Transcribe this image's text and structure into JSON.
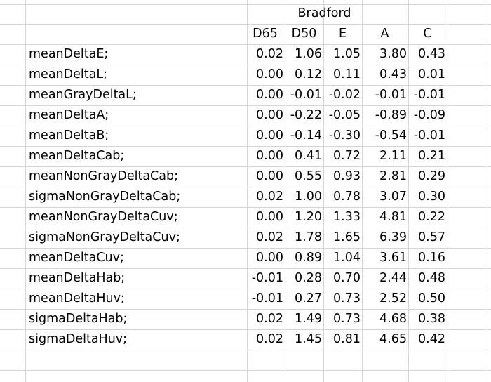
{
  "group_header": "Bradford",
  "columns": [
    "D65",
    "D50",
    "E",
    "A",
    "C"
  ],
  "rows": [
    {
      "label": "meanDeltaE;",
      "values": [
        "0.02",
        "1.06",
        "1.05",
        "3.80",
        "0.43"
      ]
    },
    {
      "label": "meanDeltaL;",
      "values": [
        "0.00",
        "0.12",
        "0.11",
        "0.43",
        "0.01"
      ]
    },
    {
      "label": "meanGrayDeltaL;",
      "values": [
        "0.00",
        "-0.01",
        "-0.02",
        "-0.01",
        "-0.01"
      ]
    },
    {
      "label": "meanDeltaA;",
      "values": [
        "0.00",
        "-0.22",
        "-0.05",
        "-0.89",
        "-0.09"
      ]
    },
    {
      "label": "meanDeltaB;",
      "values": [
        "0.00",
        "-0.14",
        "-0.30",
        "-0.54",
        "-0.01"
      ]
    },
    {
      "label": "meanDeltaCab;",
      "values": [
        "0.00",
        "0.41",
        "0.72",
        "2.11",
        "0.21"
      ]
    },
    {
      "label": "meanNonGrayDeltaCab;",
      "values": [
        "0.00",
        "0.55",
        "0.93",
        "2.81",
        "0.29"
      ]
    },
    {
      "label": "sigmaNonGrayDeltaCab;",
      "values": [
        "0.02",
        "1.00",
        "0.78",
        "3.07",
        "0.30"
      ]
    },
    {
      "label": "meanNonGrayDeltaCuv;",
      "values": [
        "0.00",
        "1.20",
        "1.33",
        "4.81",
        "0.22"
      ]
    },
    {
      "label": "sigmaNonGrayDeltaCuv;",
      "values": [
        "0.02",
        "1.78",
        "1.65",
        "6.39",
        "0.57"
      ]
    },
    {
      "label": "meanDeltaCuv;",
      "values": [
        "0.00",
        "0.89",
        "1.04",
        "3.61",
        "0.16"
      ]
    },
    {
      "label": "meanDeltaHab;",
      "values": [
        "-0.01",
        "0.28",
        "0.70",
        "2.44",
        "0.48"
      ]
    },
    {
      "label": "meanDeltaHuv;",
      "values": [
        "-0.01",
        "0.27",
        "0.73",
        "2.52",
        "0.50"
      ]
    },
    {
      "label": " sigmaDeltaHab;",
      "values": [
        "0.02",
        "1.49",
        "0.73",
        "4.68",
        "0.38"
      ]
    },
    {
      "label": "sigmaDeltaHuv;",
      "values": [
        "0.02",
        "1.45",
        "0.81",
        "4.65",
        "0.42"
      ]
    }
  ]
}
